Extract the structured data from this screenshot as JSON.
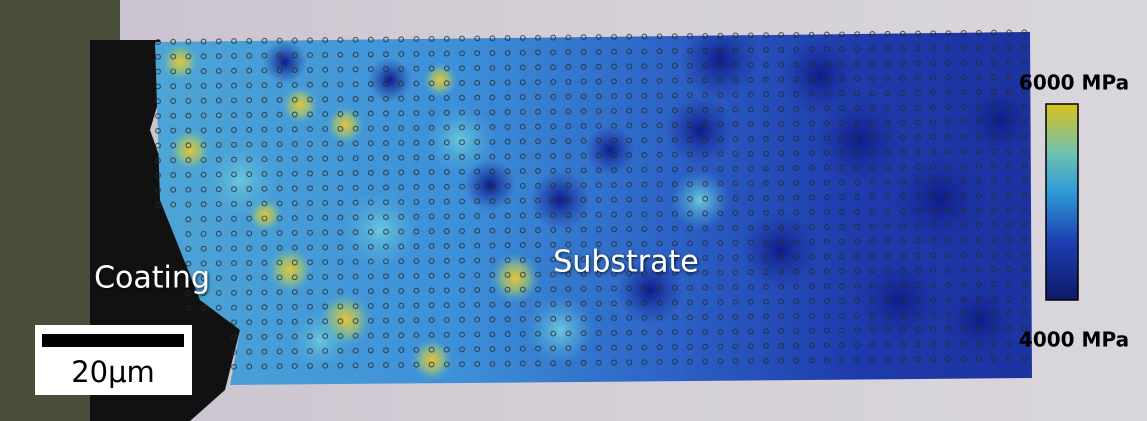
{
  "labels": {
    "coating": "Coating",
    "substrate": "Substrate"
  },
  "scale_bar": {
    "label": "20μm"
  },
  "colorbar": {
    "max_label": "6000 MPa",
    "min_label": "4000 MPa"
  }
}
